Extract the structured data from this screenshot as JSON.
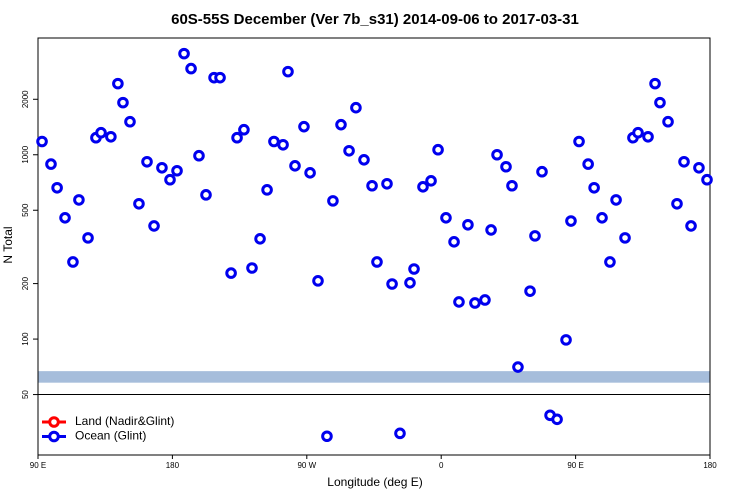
{
  "chart_data": {
    "type": "scatter",
    "title": "60S-55S December (Ver 7b_s31)   2014-09-06 to 2017-03-31",
    "x_label": "Longitude (deg E)",
    "y_label": "N Total",
    "log_y": true,
    "xlim": [
      90,
      540
    ],
    "ylim": [
      23.5,
      4300
    ],
    "xticks": [
      {
        "value": 90,
        "label": "90 E"
      },
      {
        "value": 180,
        "label": "180"
      },
      {
        "value": 270,
        "label": "90 W"
      },
      {
        "value": 360,
        "label": "0"
      },
      {
        "value": 450,
        "label": "90 E"
      },
      {
        "value": 540,
        "label": "180"
      }
    ],
    "yticks": [
      50,
      100,
      200,
      500,
      1000,
      2000
    ],
    "hline": 50,
    "band": [
      58,
      67
    ],
    "band_color": "#a6bddb",
    "legend": "bottom-left",
    "series": [
      {
        "name": "Land (Nadir&Glint)",
        "color": "#ff0000",
        "x": [],
        "values": []
      },
      {
        "name": "Ocean (Glint)",
        "color": "#0000ee",
        "x": [
          92.7,
          98.7,
          102.8,
          108.1,
          113.4,
          117.4,
          123.5,
          128.8,
          132.2,
          138.8,
          143.5,
          146.9,
          151.6,
          157.6,
          163,
          167.7,
          173,
          178.4,
          183.1,
          187.8,
          192.5,
          197.8,
          202.5,
          207.9,
          211.9,
          219.3,
          223.3,
          227.9,
          233.3,
          238.7,
          243.4,
          248,
          254.1,
          257.4,
          262.1,
          268.1,
          272.2,
          277.5,
          283.5,
          287.5,
          292.9,
          298.3,
          302.9,
          308.3,
          313.7,
          317,
          323.7,
          327.1,
          332.4,
          339.1,
          341.8,
          347.8,
          353.2,
          357.9,
          363.2,
          368.6,
          371.9,
          377.9,
          382.6,
          389.3,
          393.4,
          397.4,
          403.4,
          407.4,
          411.4,
          419.5,
          422.8,
          427.5,
          432.9,
          437.6,
          443.6,
          446.9,
          452.3,
          458.4,
          462.4,
          467.7,
          473,
          477.1,
          483.1,
          488.4,
          491.8,
          498.5,
          503.2,
          506.5,
          511.9,
          517.9,
          522.6,
          527.3,
          532.6,
          538
        ],
        "values": [
          1180,
          890,
          662,
          455,
          262,
          569,
          354,
          1237,
          1317,
          1252,
          2432,
          1918,
          1511,
          542,
          916,
          411,
          850,
          732,
          819,
          3538,
          2934,
          988,
          606,
          2620,
          2620,
          228,
          1237,
          1367,
          243,
          350,
          645,
          1180,
          1133,
          2825,
          871,
          1420,
          798,
          207,
          29.7,
          562,
          1456,
          1051,
          1800,
          939,
          679,
          262,
          696,
          199,
          30.8,
          202,
          240,
          670,
          722,
          1065,
          455,
          337,
          159,
          417,
          157,
          163,
          391,
          1000,
          861,
          679,
          70.5,
          182,
          363,
          809,
          38.6,
          36.7,
          99,
          437,
          1180,
          890,
          662,
          455,
          262,
          569,
          354,
          1237,
          1317,
          1252,
          2432,
          1918,
          1511,
          542,
          916,
          411,
          850,
          732
        ]
      }
    ]
  }
}
